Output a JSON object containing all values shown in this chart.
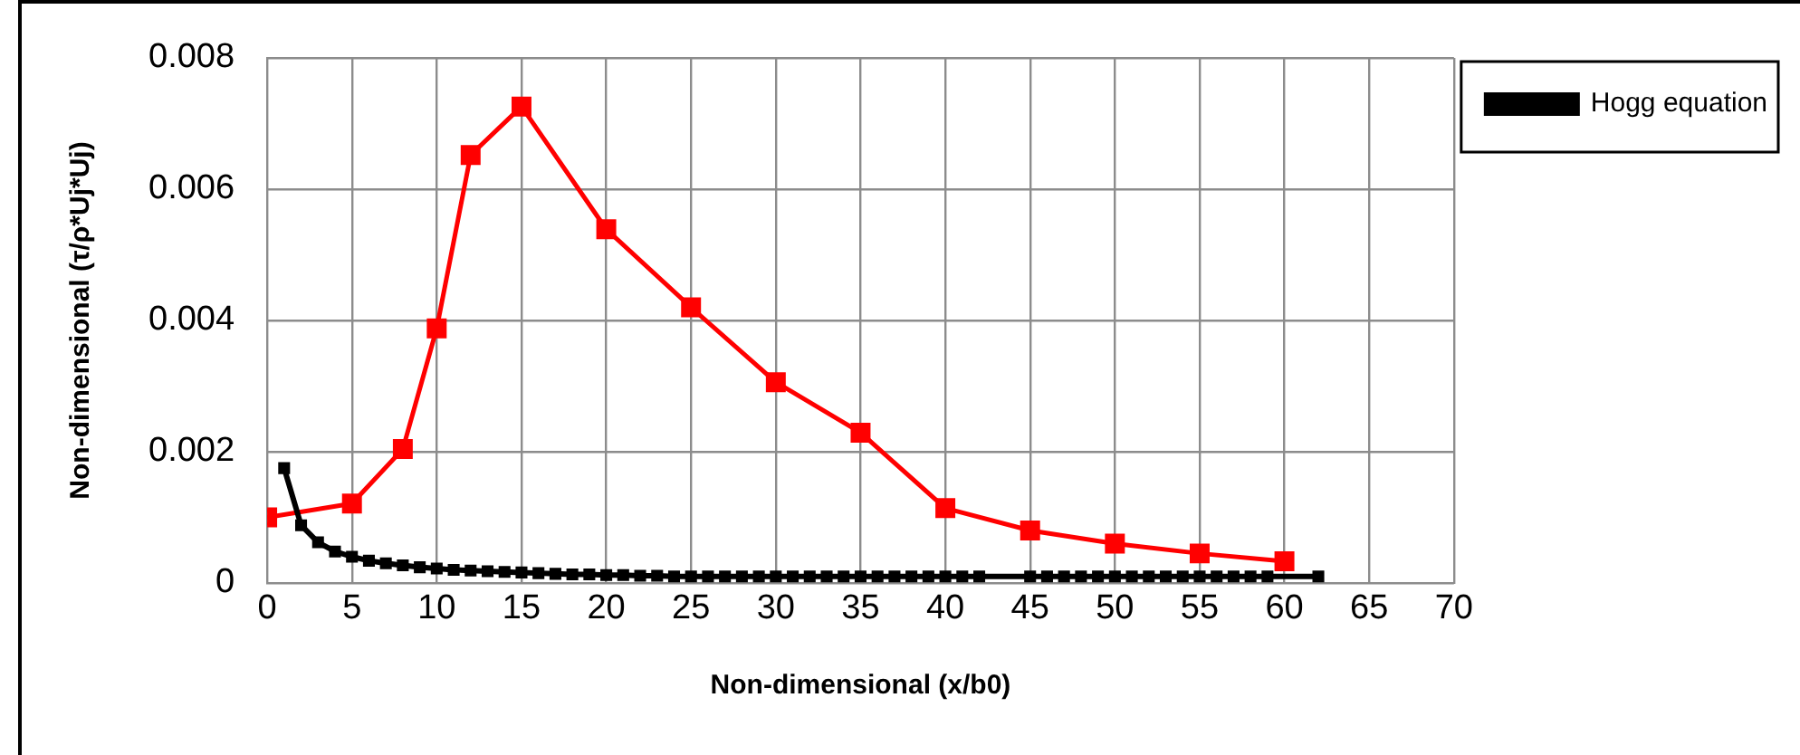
{
  "chart_data": {
    "type": "line",
    "xlabel": "Non-dimensional (x/b0)",
    "ylabel": "Non-dimensional (τ/ρ*Uj*Uj)",
    "xlim": [
      0,
      70
    ],
    "xticks": [
      0,
      5,
      10,
      15,
      20,
      25,
      30,
      35,
      40,
      45,
      50,
      55,
      60,
      65,
      70
    ],
    "ylim": [
      0,
      0.008
    ],
    "yticks": [
      0,
      0.002,
      0.004,
      0.006,
      0.008
    ],
    "grid": true,
    "legend": "top right",
    "marker": "square",
    "line_style": "solid",
    "series": [
      {
        "color": "#ff0000",
        "x": [
          0,
          5,
          8,
          10,
          12,
          15,
          20,
          25,
          30,
          35,
          40,
          45,
          50,
          55,
          60
        ],
        "values": [
          0.001,
          0.00121,
          0.00204,
          0.00388,
          0.00652,
          0.00726,
          0.00539,
          0.0042,
          0.00306,
          0.00229,
          0.00114,
          0.0008,
          0.0006,
          0.00045,
          0.00033
        ]
      },
      {
        "name": "Hogg equation",
        "color": "#000000",
        "x": [
          1,
          2,
          3,
          4,
          5,
          6,
          7,
          8,
          9,
          10,
          11,
          12,
          13,
          14,
          15,
          16,
          17,
          18,
          19,
          20,
          21,
          22,
          23,
          24,
          25,
          26,
          27,
          28,
          29,
          30,
          31,
          32,
          33,
          34,
          35,
          36,
          37,
          38,
          39,
          40,
          41,
          42,
          45,
          46,
          47,
          48,
          49,
          50,
          51,
          52,
          53,
          54,
          55,
          56,
          57,
          58,
          59,
          62
        ],
        "values": [
          0.00175,
          0.00088,
          0.00062,
          0.00048,
          0.0004,
          0.00034,
          0.0003,
          0.00027,
          0.00024,
          0.00022,
          0.0002,
          0.00019,
          0.00018,
          0.00017,
          0.00016,
          0.00015,
          0.00014,
          0.00013,
          0.00013,
          0.00012,
          0.00012,
          0.00011,
          0.00011,
          0.0001,
          0.0001,
          0.0001,
          0.0001,
          0.0001,
          0.0001,
          0.0001,
          0.0001,
          0.0001,
          0.0001,
          0.0001,
          0.0001,
          0.0001,
          0.0001,
          0.0001,
          0.0001,
          0.0001,
          0.0001,
          0.0001,
          0.0001,
          0.0001,
          0.0001,
          0.0001,
          0.0001,
          0.0001,
          0.0001,
          0.0001,
          0.0001,
          0.0001,
          0.0001,
          0.0001,
          0.0001,
          0.0001,
          0.0001,
          0.0001
        ]
      }
    ]
  }
}
